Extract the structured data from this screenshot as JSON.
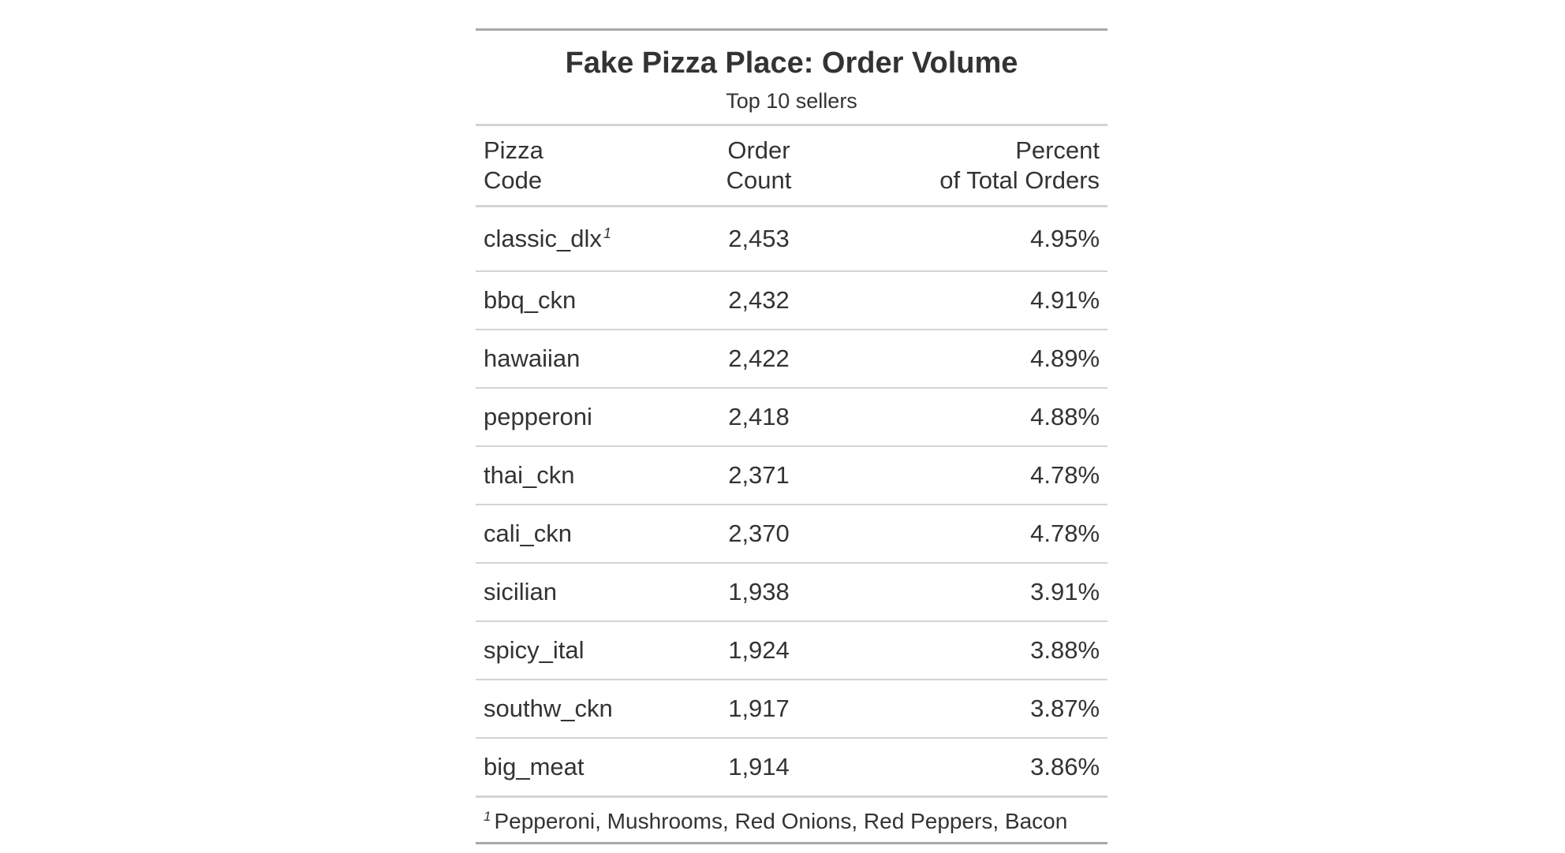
{
  "table": {
    "title": "Fake Pizza Place: Order Volume",
    "subtitle": "Top 10 sellers",
    "columns": [
      {
        "line1": "Pizza",
        "line2": "Code"
      },
      {
        "line1": "Order",
        "line2": "Count"
      },
      {
        "line1": "Percent",
        "line2": "of Total Orders"
      }
    ],
    "rows": [
      {
        "code": "classic_dlx",
        "mark": "1",
        "count": "2,453",
        "percent": "4.95%"
      },
      {
        "code": "bbq_ckn",
        "mark": "",
        "count": "2,432",
        "percent": "4.91%"
      },
      {
        "code": "hawaiian",
        "mark": "",
        "count": "2,422",
        "percent": "4.89%"
      },
      {
        "code": "pepperoni",
        "mark": "",
        "count": "2,418",
        "percent": "4.88%"
      },
      {
        "code": "thai_ckn",
        "mark": "",
        "count": "2,371",
        "percent": "4.78%"
      },
      {
        "code": "cali_ckn",
        "mark": "",
        "count": "2,370",
        "percent": "4.78%"
      },
      {
        "code": "sicilian",
        "mark": "",
        "count": "1,938",
        "percent": "3.91%"
      },
      {
        "code": "spicy_ital",
        "mark": "",
        "count": "1,924",
        "percent": "3.88%"
      },
      {
        "code": "southw_ckn",
        "mark": "",
        "count": "1,917",
        "percent": "3.87%"
      },
      {
        "code": "big_meat",
        "mark": "",
        "count": "1,914",
        "percent": "3.86%"
      }
    ],
    "footnote": {
      "mark": "1",
      "text": "Pepperoni, Mushrooms, Red Onions, Red Peppers, Bacon"
    }
  }
}
